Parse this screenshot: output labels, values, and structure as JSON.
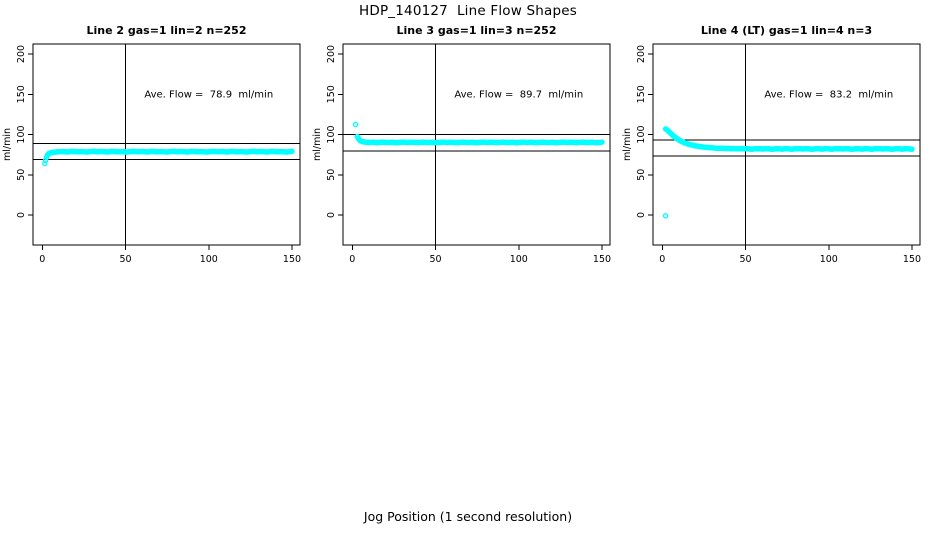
{
  "page_title": "HDP_140127  Line Flow Shapes",
  "x_axis_label": "Jog Position (1 second resolution)",
  "colors": {
    "points": "#00FFFF",
    "axis": "#000000",
    "background": "#FFFFFF"
  },
  "chart_data": [
    {
      "type": "scatter",
      "title": "Line 2 gas=1 lin=2 n=252",
      "ylabel": "ml/min",
      "annotation": "Ave. Flow =  78.9  ml/min",
      "ave_flow_ml_min": 78.9,
      "n_points": 252,
      "xlim": [
        0,
        150
      ],
      "ylim": [
        0,
        200
      ],
      "xticks": [
        0,
        50,
        100,
        150
      ],
      "yticks": [
        0,
        50,
        100,
        150,
        200
      ],
      "ref_vline_x": 50,
      "ref_hlines": [
        88.9,
        68.9
      ],
      "annotation_pos": [
        100,
        150
      ],
      "outliers": [
        [
          1.5,
          64
        ]
      ],
      "points": [
        [
          2,
          68
        ],
        [
          2.5,
          71.5
        ],
        [
          3,
          74
        ],
        [
          3.5,
          75.5
        ],
        [
          4,
          76.5
        ],
        [
          5,
          77.2
        ],
        [
          6,
          77.7
        ],
        [
          7,
          78
        ],
        [
          8,
          78.2
        ],
        [
          9,
          78.4
        ],
        [
          12,
          78.9
        ],
        [
          15,
          78.3
        ],
        [
          18,
          79.0
        ],
        [
          21,
          78.5
        ],
        [
          24,
          78.8
        ],
        [
          27,
          78.2
        ],
        [
          30,
          79.1
        ],
        [
          33,
          78.6
        ],
        [
          36,
          78.9
        ],
        [
          39,
          78.3
        ],
        [
          42,
          79.0
        ],
        [
          45,
          78.5
        ],
        [
          48,
          78.8
        ],
        [
          51,
          78.2
        ],
        [
          54,
          79.1
        ],
        [
          57,
          78.6
        ],
        [
          60,
          78.9
        ],
        [
          63,
          78.3
        ],
        [
          66,
          79.0
        ],
        [
          69,
          78.5
        ],
        [
          72,
          78.8
        ],
        [
          75,
          78.2
        ],
        [
          78,
          79.1
        ],
        [
          81,
          78.6
        ],
        [
          84,
          78.9
        ],
        [
          87,
          78.3
        ],
        [
          90,
          79.0
        ],
        [
          93,
          78.5
        ],
        [
          96,
          78.8
        ],
        [
          99,
          78.2
        ],
        [
          102,
          79.1
        ],
        [
          105,
          78.6
        ],
        [
          108,
          78.9
        ],
        [
          111,
          78.3
        ],
        [
          114,
          79.0
        ],
        [
          117,
          78.5
        ],
        [
          120,
          78.8
        ],
        [
          123,
          78.2
        ],
        [
          126,
          79.1
        ],
        [
          129,
          78.6
        ],
        [
          132,
          78.9
        ],
        [
          135,
          78.3
        ],
        [
          138,
          79.0
        ],
        [
          141,
          78.5
        ],
        [
          144,
          78.8
        ],
        [
          147,
          78.2
        ],
        [
          150,
          79.1
        ]
      ]
    },
    {
      "type": "scatter",
      "title": "Line 3 gas=1 lin=3 n=252",
      "ylabel": "ml/min",
      "annotation": "Ave. Flow =  89.7  ml/min",
      "ave_flow_ml_min": 89.7,
      "n_points": 252,
      "xlim": [
        0,
        150
      ],
      "ylim": [
        0,
        200
      ],
      "xticks": [
        0,
        50,
        100,
        150
      ],
      "yticks": [
        0,
        50,
        100,
        150,
        200
      ],
      "ref_vline_x": 50,
      "ref_hlines": [
        99.7,
        79.7
      ],
      "annotation_pos": [
        100,
        150
      ],
      "outliers": [
        [
          2,
          112.5
        ]
      ],
      "points": [
        [
          3,
          97.5
        ],
        [
          3.5,
          95.5
        ],
        [
          4,
          94
        ],
        [
          4.5,
          92.9
        ],
        [
          5,
          92.1
        ],
        [
          6,
          91.2
        ],
        [
          7,
          90.8
        ],
        [
          8,
          90.5
        ],
        [
          9,
          90.3
        ],
        [
          10,
          90.1
        ],
        [
          12,
          90.4
        ],
        [
          15,
          89.8
        ],
        [
          18,
          90.5
        ],
        [
          21,
          90.0
        ],
        [
          24,
          90.3
        ],
        [
          27,
          89.7
        ],
        [
          30,
          90.6
        ],
        [
          33,
          90.1
        ],
        [
          36,
          90.4
        ],
        [
          39,
          89.8
        ],
        [
          42,
          90.5
        ],
        [
          45,
          90.0
        ],
        [
          48,
          90.3
        ],
        [
          51,
          89.7
        ],
        [
          54,
          90.6
        ],
        [
          57,
          90.1
        ],
        [
          60,
          90.4
        ],
        [
          63,
          89.8
        ],
        [
          66,
          90.5
        ],
        [
          69,
          90.0
        ],
        [
          72,
          90.3
        ],
        [
          75,
          89.7
        ],
        [
          78,
          90.6
        ],
        [
          81,
          90.1
        ],
        [
          84,
          90.4
        ],
        [
          87,
          89.8
        ],
        [
          90,
          90.5
        ],
        [
          93,
          90.0
        ],
        [
          96,
          90.3
        ],
        [
          99,
          89.7
        ],
        [
          102,
          90.6
        ],
        [
          105,
          90.1
        ],
        [
          108,
          90.4
        ],
        [
          111,
          89.8
        ],
        [
          114,
          90.5
        ],
        [
          117,
          90.0
        ],
        [
          120,
          90.3
        ],
        [
          123,
          89.7
        ],
        [
          126,
          90.6
        ],
        [
          129,
          90.1
        ],
        [
          132,
          90.4
        ],
        [
          135,
          89.8
        ],
        [
          138,
          90.5
        ],
        [
          141,
          90.0
        ],
        [
          144,
          90.3
        ],
        [
          147,
          89.7
        ],
        [
          150,
          90.6
        ]
      ]
    },
    {
      "type": "scatter",
      "title": "Line 4 (LT) gas=1 lin=4 n=3",
      "ylabel": "ml/min",
      "annotation": "Ave. Flow =  83.2  ml/min",
      "ave_flow_ml_min": 83.2,
      "n_points": 3,
      "xlim": [
        0,
        150
      ],
      "ylim": [
        0,
        200
      ],
      "xticks": [
        0,
        50,
        100,
        150
      ],
      "yticks": [
        0,
        50,
        100,
        150,
        200
      ],
      "ref_vline_x": 50,
      "ref_hlines": [
        93.2,
        73.2
      ],
      "annotation_pos": [
        100,
        150
      ],
      "outliers": [
        [
          2,
          -1
        ]
      ],
      "points": [
        [
          2,
          107
        ],
        [
          3,
          105.5
        ],
        [
          4,
          103.5
        ],
        [
          5,
          101.5
        ],
        [
          6,
          99.5
        ],
        [
          7,
          97.7
        ],
        [
          8,
          96
        ],
        [
          9,
          94.5
        ],
        [
          10,
          93.2
        ],
        [
          11,
          92
        ],
        [
          12,
          91
        ],
        [
          13,
          90.1
        ],
        [
          14,
          89.3
        ],
        [
          15,
          88.6
        ],
        [
          16,
          87.9
        ],
        [
          17,
          87.3
        ],
        [
          18,
          86.8
        ],
        [
          19,
          86.3
        ],
        [
          20,
          85.9
        ],
        [
          22,
          85.2
        ],
        [
          24,
          84.6
        ],
        [
          26,
          84.1
        ],
        [
          28,
          83.7
        ],
        [
          30,
          83.4
        ],
        [
          33,
          83.0
        ],
        [
          36,
          82.8
        ],
        [
          39,
          82.6
        ],
        [
          42,
          82.5
        ],
        [
          45,
          82.4
        ],
        [
          48,
          82.3
        ],
        [
          51,
          82.4
        ],
        [
          54,
          81.8
        ],
        [
          57,
          82.5
        ],
        [
          60,
          82.0
        ],
        [
          63,
          82.3
        ],
        [
          66,
          81.7
        ],
        [
          69,
          82.4
        ],
        [
          72,
          81.9
        ],
        [
          75,
          82.4
        ],
        [
          78,
          81.8
        ],
        [
          81,
          82.5
        ],
        [
          84,
          82.0
        ],
        [
          87,
          82.3
        ],
        [
          90,
          81.7
        ],
        [
          93,
          82.4
        ],
        [
          96,
          81.9
        ],
        [
          99,
          82.4
        ],
        [
          102,
          81.8
        ],
        [
          105,
          82.5
        ],
        [
          108,
          82.0
        ],
        [
          111,
          82.3
        ],
        [
          114,
          81.7
        ],
        [
          117,
          82.4
        ],
        [
          120,
          81.9
        ],
        [
          123,
          82.4
        ],
        [
          126,
          81.8
        ],
        [
          129,
          82.5
        ],
        [
          132,
          82.0
        ],
        [
          135,
          82.3
        ],
        [
          138,
          81.7
        ],
        [
          141,
          82.4
        ],
        [
          144,
          81.9
        ],
        [
          147,
          82.4
        ],
        [
          150,
          81.8
        ]
      ]
    }
  ]
}
